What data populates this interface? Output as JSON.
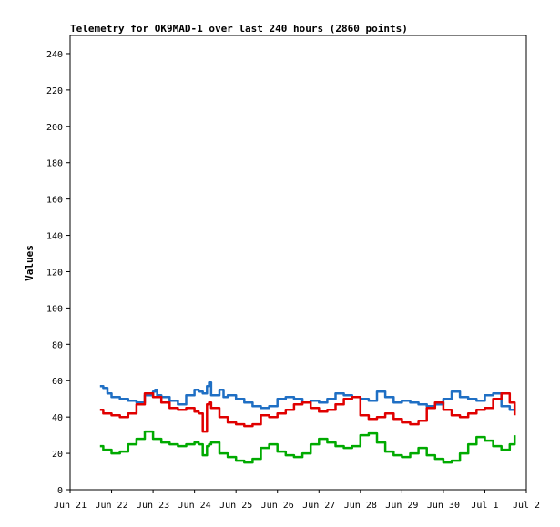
{
  "chart_data": {
    "type": "line",
    "title": "Telemetry for OK9MAD-1 over last 240 hours (2860 points)",
    "ylabel": "Values",
    "xlabel": "",
    "ylim": [
      0,
      250
    ],
    "yticks": [
      0,
      20,
      40,
      60,
      80,
      100,
      120,
      140,
      160,
      180,
      200,
      220,
      240
    ],
    "xticks": [
      "Jun 21",
      "Jun 22",
      "Jun 23",
      "Jun 24",
      "Jun 25",
      "Jun 26",
      "Jun 27",
      "Jun 28",
      "Jun 29",
      "Jun 30",
      "Jul 1",
      "Jul 2"
    ],
    "xlim_days": [
      0,
      11
    ],
    "grid": false,
    "series": [
      {
        "color": "#1f6fc4",
        "x": [
          0.72,
          0.8,
          0.9,
          1.0,
          1.2,
          1.4,
          1.6,
          1.8,
          2.0,
          2.05,
          2.1,
          2.2,
          2.4,
          2.6,
          2.8,
          3.0,
          3.1,
          3.2,
          3.3,
          3.35,
          3.4,
          3.6,
          3.7,
          3.8,
          4.0,
          4.2,
          4.4,
          4.6,
          4.8,
          5.0,
          5.2,
          5.4,
          5.6,
          5.8,
          6.0,
          6.2,
          6.4,
          6.6,
          6.8,
          7.0,
          7.2,
          7.4,
          7.6,
          7.8,
          8.0,
          8.2,
          8.4,
          8.6,
          8.8,
          9.0,
          9.2,
          9.4,
          9.6,
          9.8,
          10.0,
          10.2,
          10.4,
          10.6,
          10.72
        ],
        "y": [
          57,
          56,
          53,
          51,
          50,
          49,
          48,
          52,
          54,
          55,
          52,
          51,
          49,
          47,
          52,
          55,
          54,
          53,
          57,
          59,
          52,
          55,
          51,
          52,
          50,
          48,
          46,
          45,
          46,
          50,
          51,
          50,
          48,
          49,
          48,
          50,
          53,
          52,
          51,
          50,
          49,
          54,
          51,
          48,
          49,
          48,
          47,
          46,
          47,
          50,
          54,
          51,
          50,
          49,
          52,
          53,
          46,
          44,
          47
        ]
      },
      {
        "color": "#e00000",
        "x": [
          0.72,
          0.8,
          1.0,
          1.2,
          1.4,
          1.6,
          1.8,
          2.0,
          2.2,
          2.4,
          2.6,
          2.8,
          3.0,
          3.1,
          3.2,
          3.3,
          3.35,
          3.4,
          3.6,
          3.8,
          4.0,
          4.2,
          4.4,
          4.6,
          4.8,
          5.0,
          5.2,
          5.4,
          5.6,
          5.8,
          6.0,
          6.2,
          6.4,
          6.6,
          6.8,
          7.0,
          7.2,
          7.4,
          7.6,
          7.8,
          8.0,
          8.2,
          8.4,
          8.6,
          8.8,
          9.0,
          9.2,
          9.4,
          9.6,
          9.8,
          10.0,
          10.2,
          10.4,
          10.6,
          10.72
        ],
        "y": [
          44,
          42,
          41,
          40,
          42,
          47,
          53,
          51,
          48,
          45,
          44,
          45,
          43,
          42,
          32,
          47,
          48,
          45,
          40,
          37,
          36,
          35,
          36,
          41,
          40,
          42,
          44,
          47,
          48,
          45,
          43,
          44,
          47,
          50,
          51,
          41,
          39,
          40,
          42,
          39,
          37,
          36,
          38,
          45,
          48,
          44,
          41,
          40,
          42,
          44,
          45,
          50,
          53,
          48,
          41
        ]
      },
      {
        "color": "#00aa00",
        "x": [
          0.72,
          0.8,
          1.0,
          1.2,
          1.4,
          1.6,
          1.8,
          2.0,
          2.2,
          2.4,
          2.6,
          2.8,
          3.0,
          3.1,
          3.2,
          3.3,
          3.35,
          3.4,
          3.6,
          3.8,
          4.0,
          4.2,
          4.4,
          4.6,
          4.8,
          5.0,
          5.2,
          5.4,
          5.6,
          5.8,
          6.0,
          6.2,
          6.4,
          6.6,
          6.8,
          7.0,
          7.2,
          7.4,
          7.6,
          7.8,
          8.0,
          8.2,
          8.4,
          8.6,
          8.8,
          9.0,
          9.2,
          9.4,
          9.6,
          9.8,
          10.0,
          10.2,
          10.4,
          10.6,
          10.72
        ],
        "y": [
          24,
          22,
          20,
          21,
          25,
          28,
          32,
          28,
          26,
          25,
          24,
          25,
          26,
          25,
          19,
          24,
          25,
          26,
          20,
          18,
          16,
          15,
          17,
          23,
          25,
          21,
          19,
          18,
          20,
          25,
          28,
          26,
          24,
          23,
          24,
          30,
          31,
          26,
          21,
          19,
          18,
          20,
          23,
          19,
          17,
          15,
          16,
          20,
          25,
          29,
          27,
          24,
          22,
          25,
          30
        ]
      },
      {
        "color": "#000000",
        "x": [
          0.72,
          10.72
        ],
        "y": [
          0,
          0
        ]
      }
    ]
  }
}
